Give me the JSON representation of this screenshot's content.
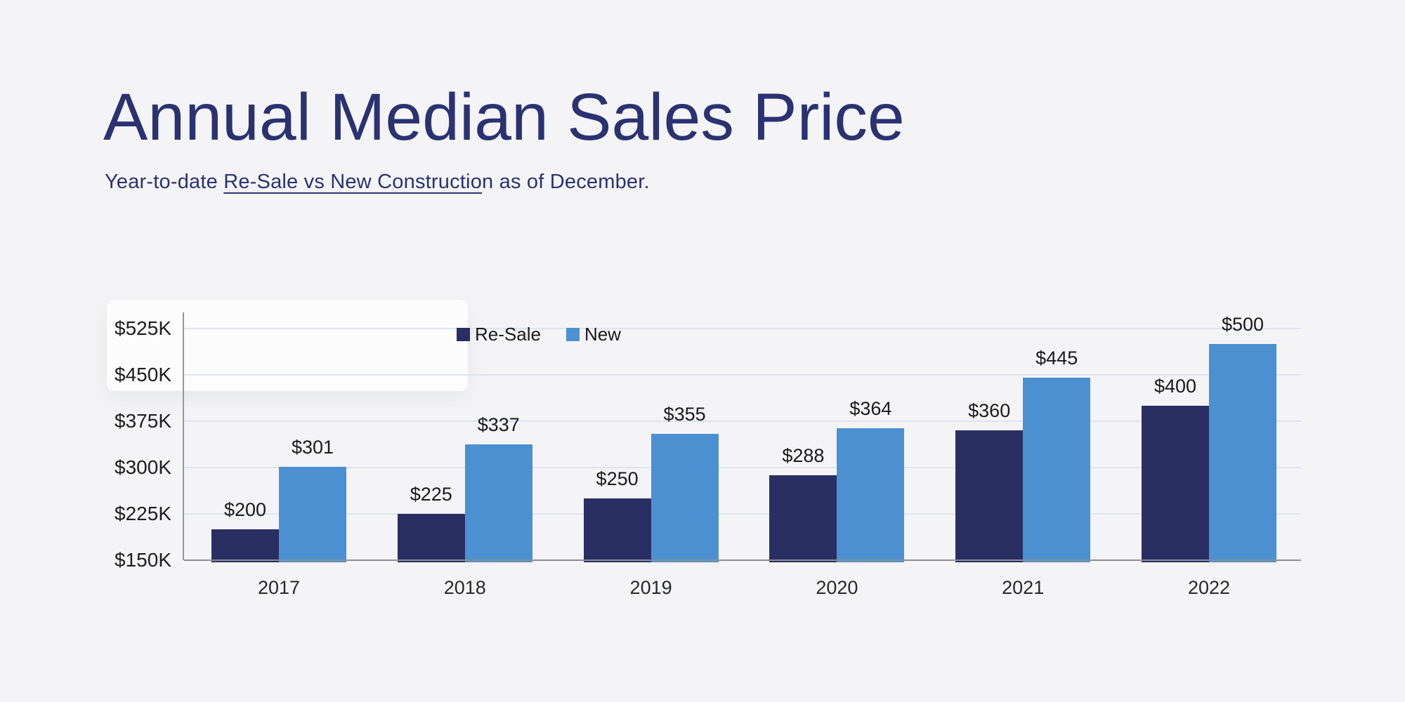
{
  "header": {
    "title": "Annual Median Sales Price",
    "subtitle_prefix": "Year-to-date ",
    "subtitle_underlined": "Re-Sale vs New Constructio",
    "subtitle_suffix": "n as of December."
  },
  "legend": {
    "items": [
      {
        "label": "Re-Sale",
        "color": "#292f63"
      },
      {
        "label": "New",
        "color": "#4b91d1"
      }
    ]
  },
  "chart_data": {
    "type": "bar",
    "title": "Annual Median Sales Price",
    "subtitle": "Year-to-date Re-Sale vs New Construction as of December.",
    "categories": [
      "2017",
      "2018",
      "2019",
      "2020",
      "2021",
      "2022"
    ],
    "series": [
      {
        "name": "Re-Sale",
        "color": "#292f63",
        "values": [
          200,
          225,
          250,
          288,
          360,
          400
        ],
        "labels": [
          "$200",
          "$225",
          "$250",
          "$288",
          "$360",
          "$400"
        ]
      },
      {
        "name": "New",
        "color": "#4b91d1",
        "values": [
          301,
          337,
          355,
          364,
          445,
          500
        ],
        "labels": [
          "$301",
          "$337",
          "$355",
          "$364",
          "$445",
          "$500"
        ]
      }
    ],
    "value_unit": "thousand USD",
    "yticks": [
      {
        "value": 525,
        "label": "$525K"
      },
      {
        "value": 450,
        "label": "$450K"
      },
      {
        "value": 375,
        "label": "$375K"
      },
      {
        "value": 300,
        "label": "$300K"
      },
      {
        "value": 225,
        "label": "$225K"
      },
      {
        "value": 150,
        "label": "$150K"
      }
    ],
    "ylim": [
      150,
      555
    ],
    "grid": true,
    "legend_position": "top-center"
  },
  "colors": {
    "background": "#f4f4f6",
    "title_text": "#2b3272",
    "resale_bar": "#292f63",
    "new_bar": "#4b91d1",
    "gridline": "#dde3ef",
    "axis_line": "#8e8e93",
    "label_text": "#1a1a1c",
    "card": "#fcfcfd"
  }
}
